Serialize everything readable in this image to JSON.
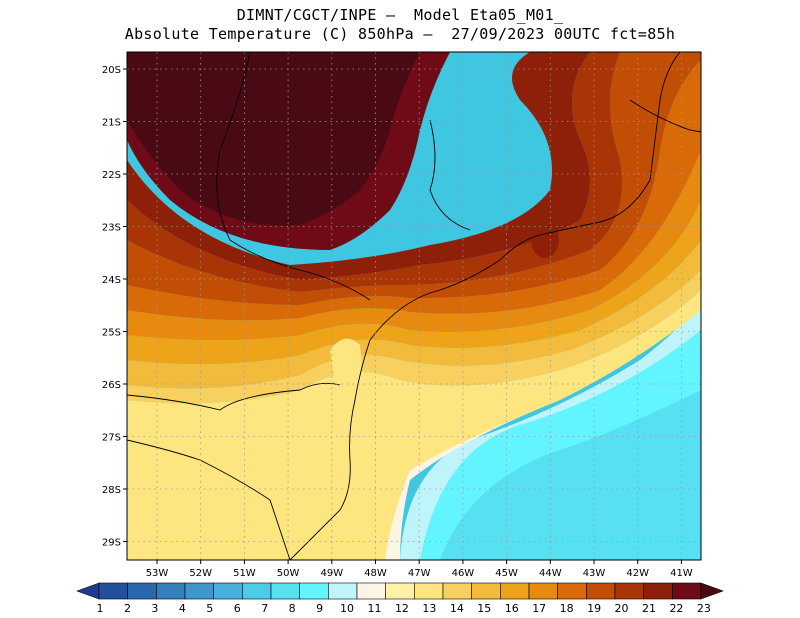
{
  "title": {
    "line1": "DIMNT/CGCT/INPE –  Model Eta05_M01_",
    "line2": "Absolute Temperature (C) 850hPa –  27/09/2023 00UTC fct=85h"
  },
  "axes": {
    "lat_labels": [
      "20S",
      "21S",
      "22S",
      "23S",
      "24S",
      "25S",
      "26S",
      "27S",
      "28S",
      "29S"
    ],
    "lon_labels": [
      "53W",
      "52W",
      "51W",
      "50W",
      "49W",
      "48W",
      "47W",
      "46W",
      "45W",
      "44W",
      "43W",
      "42W",
      "41W"
    ]
  },
  "colorbar": {
    "labels": [
      "1",
      "2",
      "3",
      "4",
      "5",
      "6",
      "7",
      "8",
      "9",
      "10",
      "11",
      "12",
      "13",
      "14",
      "15",
      "16",
      "17",
      "18",
      "19",
      "20",
      "21",
      "22",
      "23"
    ],
    "colors": [
      "#1f3a93",
      "#23509e",
      "#2a68ad",
      "#3380bd",
      "#3e97cc",
      "#48b0dc",
      "#4ecbe8",
      "#56e0f2",
      "#62f5ff",
      "#bff4fb",
      "#fdf5e3",
      "#fff2a8",
      "#fde580",
      "#f7d060",
      "#f2bb3c",
      "#eda41b",
      "#e68b0f",
      "#d86a08",
      "#c24d05",
      "#a93405",
      "#8e1f09",
      "#6e0b16",
      "#4a0a14"
    ]
  },
  "map": {
    "background": "#3fc6e0",
    "field": [
      {
        "name": "warm-core",
        "color": "#4a0a14"
      },
      {
        "name": "band-22",
        "color": "#6e0b16"
      },
      {
        "name": "band-21",
        "color": "#8e1f09"
      },
      {
        "name": "band-20",
        "color": "#a93405"
      },
      {
        "name": "band-19",
        "color": "#c24d05"
      },
      {
        "name": "band-18",
        "color": "#d86a08"
      },
      {
        "name": "band-17",
        "color": "#e68b0f"
      },
      {
        "name": "band-16",
        "color": "#eda41b"
      },
      {
        "name": "band-15",
        "color": "#f2bb3c"
      },
      {
        "name": "band-14",
        "color": "#f7d060"
      },
      {
        "name": "band-13",
        "color": "#fde580"
      },
      {
        "name": "band-11",
        "color": "#fdf5e3"
      },
      {
        "name": "band-10",
        "color": "#bff4fb"
      },
      {
        "name": "band-9",
        "color": "#62f5ff"
      },
      {
        "name": "band-8",
        "color": "#56e0f2"
      },
      {
        "name": "band-7",
        "color": "#4ecbe8"
      },
      {
        "name": "band-6",
        "color": "#48b0dc"
      }
    ]
  }
}
